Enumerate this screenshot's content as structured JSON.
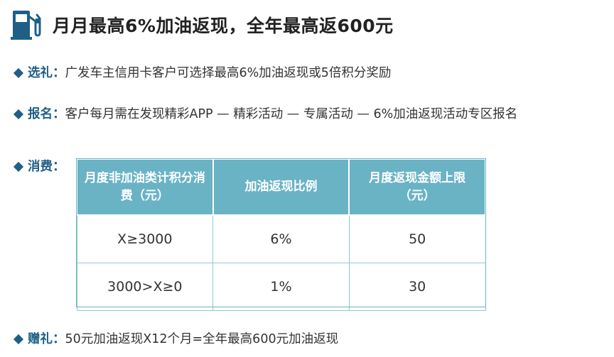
{
  "header": {
    "icon": "fuel-pump-icon",
    "title": "月月最高6%加油返现，全年最高返600元"
  },
  "sections": {
    "select": {
      "label": "选礼：",
      "text": "广发车主信用卡客户可选择最高6%加油返现或5倍积分奖励"
    },
    "register": {
      "label": "报名：",
      "text": "客户每月需在发现精彩APP — 精彩活动 — 专属活动 — 6%加油返现活动专区报名"
    },
    "spend": {
      "label": "消费："
    },
    "gift": {
      "label": "赠礼：",
      "text": "50元加油返现X12个月=全年最高600元加油返现"
    }
  },
  "table": {
    "headers": [
      "月度非加油类计积分消费（元）",
      "加油返现比例",
      "月度返现金额上限（元）"
    ],
    "rows": [
      [
        "X≥3000",
        "6%",
        "50"
      ],
      [
        "3000>X≥0",
        "1%",
        "30"
      ]
    ]
  },
  "colors": {
    "accent": "#1f5f86",
    "table_header": "#6ab3c5",
    "table_border": "#8fc7d5"
  }
}
